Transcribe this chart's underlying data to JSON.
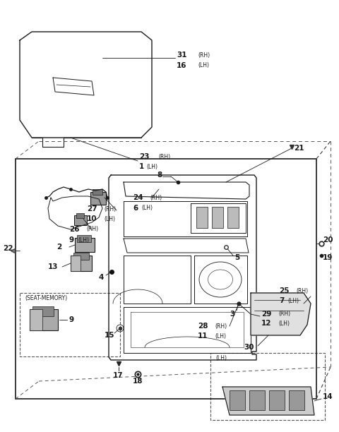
{
  "bg_color": "#ffffff",
  "lc": "#1a1a1a",
  "lc2": "#444444",
  "fig_w": 4.8,
  "fig_h": 6.12,
  "dpi": 100,
  "xlim": [
    0,
    480
  ],
  "ylim": [
    0,
    612
  ]
}
